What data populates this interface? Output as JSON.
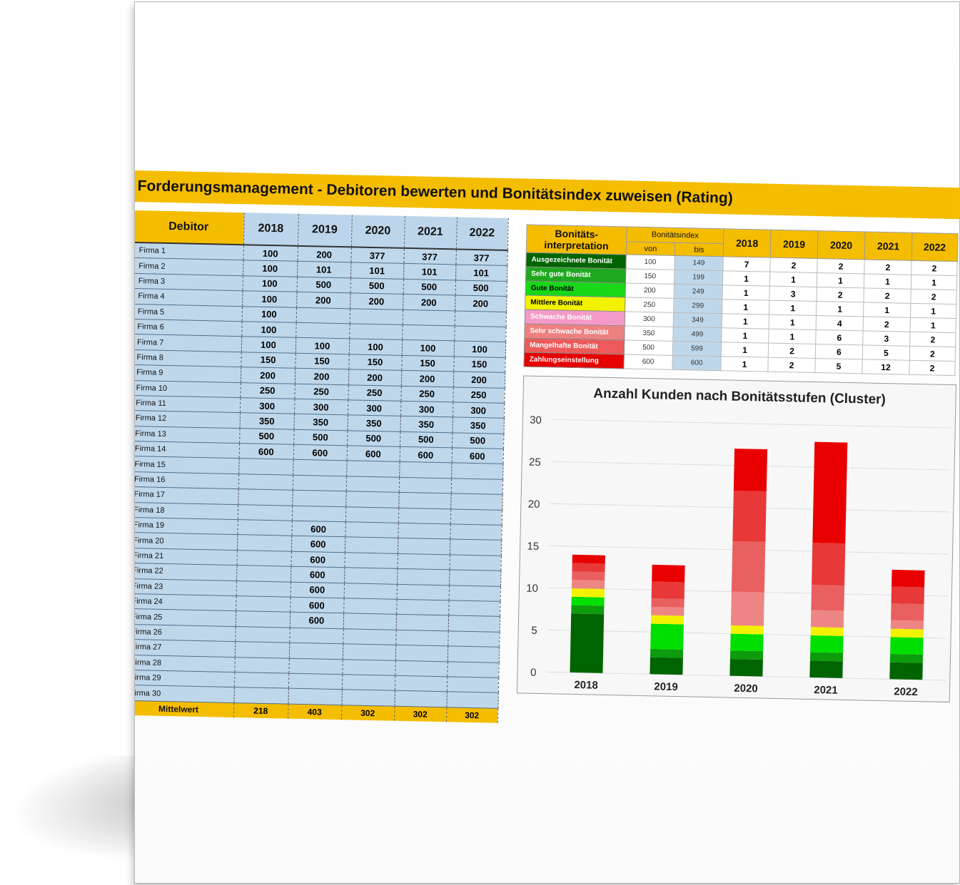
{
  "title": "Forderungsmanagement - Debitoren bewerten und Bonitätsindex zuweisen (Rating)",
  "debitor_table": {
    "header": [
      "Debitor",
      "2018",
      "2019",
      "2020",
      "2021",
      "2022"
    ],
    "rows": [
      [
        "Firma 1",
        "100",
        "200",
        "377",
        "377",
        "377"
      ],
      [
        "Firma 2",
        "100",
        "101",
        "101",
        "101",
        "101"
      ],
      [
        "Firma 3",
        "100",
        "500",
        "500",
        "500",
        "500"
      ],
      [
        "Firma 4",
        "100",
        "200",
        "200",
        "200",
        "200"
      ],
      [
        "Firma 5",
        "100",
        "",
        "",
        "",
        ""
      ],
      [
        "Firma 6",
        "100",
        "",
        "",
        "",
        ""
      ],
      [
        "Firma 7",
        "100",
        "100",
        "100",
        "100",
        "100"
      ],
      [
        "Firma 8",
        "150",
        "150",
        "150",
        "150",
        "150"
      ],
      [
        "Firma 9",
        "200",
        "200",
        "200",
        "200",
        "200"
      ],
      [
        "Firma 10",
        "250",
        "250",
        "250",
        "250",
        "250"
      ],
      [
        "Firma 11",
        "300",
        "300",
        "300",
        "300",
        "300"
      ],
      [
        "Firma 12",
        "350",
        "350",
        "350",
        "350",
        "350"
      ],
      [
        "Firma 13",
        "500",
        "500",
        "500",
        "500",
        "500"
      ],
      [
        "Firma 14",
        "600",
        "600",
        "600",
        "600",
        "600"
      ],
      [
        "Firma 15",
        "",
        "",
        "",
        "",
        ""
      ],
      [
        "Firma 16",
        "",
        "",
        "",
        "",
        ""
      ],
      [
        "Firma 17",
        "",
        "",
        "",
        "",
        ""
      ],
      [
        "Firma 18",
        "",
        "",
        "",
        "",
        ""
      ],
      [
        "Firma 19",
        "",
        "600",
        "",
        "",
        ""
      ],
      [
        "Firma 20",
        "",
        "600",
        "",
        "",
        ""
      ],
      [
        "Firma 21",
        "",
        "600",
        "",
        "",
        ""
      ],
      [
        "Firma 22",
        "",
        "600",
        "",
        "",
        ""
      ],
      [
        "Firma 23",
        "",
        "600",
        "",
        "",
        ""
      ],
      [
        "Firma 24",
        "",
        "600",
        "",
        "",
        ""
      ],
      [
        "Firma 25",
        "",
        "600",
        "",
        "",
        ""
      ],
      [
        "Firma 26",
        "",
        "",
        "",
        "",
        ""
      ],
      [
        "Firma 27",
        "",
        "",
        "",
        "",
        ""
      ],
      [
        "Firma 28",
        "",
        "",
        "",
        "",
        ""
      ],
      [
        "Firma 29",
        "",
        "",
        "",
        "",
        ""
      ],
      [
        "Firma 30",
        "",
        "",
        "",
        "",
        ""
      ]
    ],
    "footer": [
      "Mittelwert",
      "218",
      "403",
      "302",
      "302",
      "302"
    ]
  },
  "rating_table": {
    "header_interp": "Bonitäts-interpretation",
    "header_index": "Bonitätsindex",
    "header_von": "von",
    "header_bis": "bis",
    "years": [
      "2018",
      "2019",
      "2020",
      "2021",
      "2022"
    ],
    "rows": [
      {
        "label": "Ausgezeichnete Bonität",
        "color": "#006400",
        "text_color": "#ffffff",
        "von": "100",
        "bis": "149",
        "counts": [
          "7",
          "2",
          "2",
          "2",
          "2"
        ]
      },
      {
        "label": "Sehr gute Bonität",
        "color": "#1fa81f",
        "text_color": "#ffffff",
        "von": "150",
        "bis": "199",
        "counts": [
          "1",
          "1",
          "1",
          "1",
          "1"
        ]
      },
      {
        "label": "Gute Bonität",
        "color": "#18d818",
        "text_color": "#000000",
        "von": "200",
        "bis": "249",
        "counts": [
          "1",
          "3",
          "2",
          "2",
          "2"
        ]
      },
      {
        "label": "Mittlere Bonität",
        "color": "#f2f200",
        "text_color": "#000000",
        "von": "250",
        "bis": "299",
        "counts": [
          "1",
          "1",
          "1",
          "1",
          "1"
        ]
      },
      {
        "label": "Schwache Bonität",
        "color": "#f49ac8",
        "text_color": "#ffffff",
        "von": "300",
        "bis": "349",
        "counts": [
          "1",
          "1",
          "4",
          "2",
          "1"
        ]
      },
      {
        "label": "Sehr schwache Bonität",
        "color": "#ef8080",
        "text_color": "#ffffff",
        "von": "350",
        "bis": "499",
        "counts": [
          "1",
          "1",
          "6",
          "3",
          "2"
        ]
      },
      {
        "label": "Mangelhafte Bonität",
        "color": "#ec5a5a",
        "text_color": "#ffffff",
        "von": "500",
        "bis": "599",
        "counts": [
          "1",
          "2",
          "6",
          "5",
          "2"
        ]
      },
      {
        "label": "Zahlungseinstellung",
        "color": "#e60000",
        "text_color": "#ffffff",
        "von": "600",
        "bis": "600",
        "counts": [
          "1",
          "2",
          "5",
          "12",
          "2"
        ]
      }
    ]
  },
  "chart_data": {
    "type": "bar",
    "stacked": true,
    "title": "Anzahl Kunden nach Bonitätsstufen (Cluster)",
    "categories": [
      "2018",
      "2019",
      "2020",
      "2021",
      "2022"
    ],
    "ylim": [
      0,
      30
    ],
    "yticks": [
      0,
      5,
      10,
      15,
      20,
      25,
      30
    ],
    "grid": true,
    "series": [
      {
        "values": [
          7,
          2,
          2,
          2,
          2
        ],
        "color": "#006400"
      },
      {
        "values": [
          1,
          1,
          1,
          1,
          1
        ],
        "color": "#0c9c0c"
      },
      {
        "values": [
          1,
          3,
          2,
          2,
          2
        ],
        "color": "#00e000"
      },
      {
        "values": [
          1,
          1,
          1,
          1,
          1
        ],
        "color": "#f2f200"
      },
      {
        "values": [
          1,
          1,
          4,
          2,
          1
        ],
        "color": "#ee8585"
      },
      {
        "values": [
          1,
          1,
          6,
          3,
          2
        ],
        "color": "#ea6060"
      },
      {
        "values": [
          1,
          2,
          6,
          5,
          2
        ],
        "color": "#e83838"
      },
      {
        "values": [
          1,
          2,
          5,
          12,
          2
        ],
        "color": "#e80000"
      }
    ]
  }
}
